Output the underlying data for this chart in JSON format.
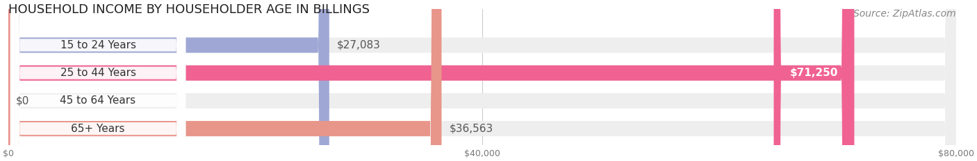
{
  "title": "HOUSEHOLD INCOME BY HOUSEHOLDER AGE IN BILLINGS",
  "source": "Source: ZipAtlas.com",
  "categories": [
    "15 to 24 Years",
    "25 to 44 Years",
    "45 to 64 Years",
    "65+ Years"
  ],
  "values": [
    27083,
    71250,
    0,
    36563
  ],
  "bar_colors": [
    "#9fa8d5",
    "#f06292",
    "#f5c99a",
    "#e8958a"
  ],
  "bg_track_color": "#eeeeee",
  "bar_label_colors": [
    "#555555",
    "#ffffff",
    "#555555",
    "#555555"
  ],
  "xlim": [
    0,
    80000
  ],
  "xticks": [
    0,
    40000,
    80000
  ],
  "xtick_labels": [
    "$0",
    "$40,000",
    "$80,000"
  ],
  "background_color": "#ffffff",
  "title_fontsize": 13,
  "source_fontsize": 10,
  "label_fontsize": 11,
  "value_fontsize": 11
}
